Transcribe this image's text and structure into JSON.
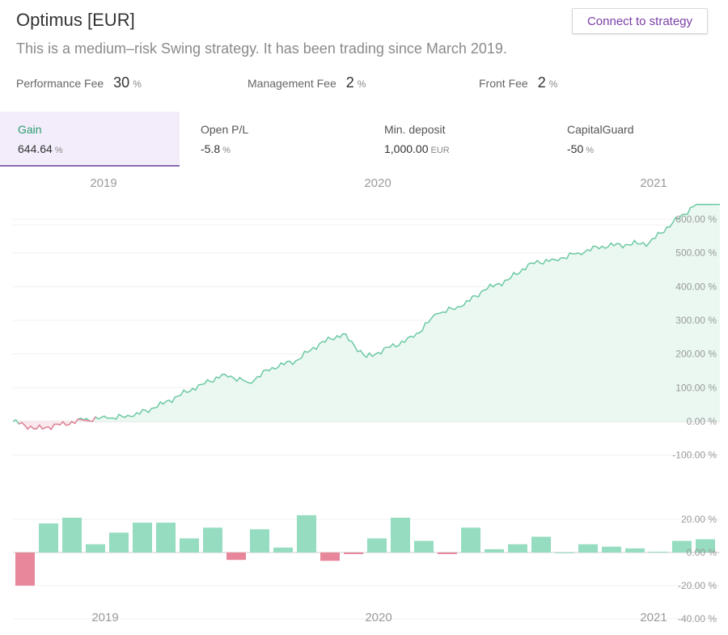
{
  "header": {
    "title": "Optimus [EUR]",
    "subtitle": "This is a medium–risk Swing strategy. It has been trading since March 2019.",
    "connect_label": "Connect to strategy"
  },
  "fees": [
    {
      "label": "Performance Fee",
      "value": "30",
      "unit": "%"
    },
    {
      "label": "Management Fee",
      "value": "2",
      "unit": "%"
    },
    {
      "label": "Front Fee",
      "value": "2",
      "unit": "%"
    }
  ],
  "stats": [
    {
      "label": "Gain",
      "value": "644.64",
      "unit": "%",
      "active": true
    },
    {
      "label": "Open P/L",
      "value": "-5.8",
      "unit": "%"
    },
    {
      "label": "Min. deposit",
      "value": "1,000.00",
      "unit": "EUR"
    },
    {
      "label": "CapitalGuard",
      "value": "-50",
      "unit": "%"
    }
  ],
  "colors": {
    "accent": "#7b3fa6",
    "positive": "#6cc9a2",
    "negative": "#e8829a",
    "bar_positive": "#96dcc0",
    "bar_negative": "#e8879b"
  },
  "chart_data": [
    {
      "type": "area",
      "top_year_labels": [
        "2019",
        "2020",
        "2021"
      ],
      "y_tick_labels": [
        "600.00 %",
        "500.00 %",
        "400.00 %",
        "300.00 %",
        "200.00 %",
        "100.00 %",
        "0.00 %",
        "-100.00 %"
      ],
      "ylim": [
        -100,
        620
      ],
      "grid": true,
      "series": [
        {
          "x": [
            "2018-10",
            "2018-11",
            "2018-12",
            "2019-01",
            "2019-02",
            "2019-03",
            "2019-04",
            "2019-05",
            "2019-06",
            "2019-07",
            "2019-08",
            "2019-09",
            "2019-10",
            "2019-11",
            "2019-12",
            "2020-01",
            "2020-02",
            "2020-03",
            "2020-04",
            "2020-05",
            "2020-06",
            "2020-07",
            "2020-08",
            "2020-09",
            "2020-10",
            "2020-11",
            "2020-12",
            "2021-01",
            "2021-02",
            "2021-03"
          ],
          "y": [
            0,
            -22,
            -10,
            5,
            10,
            15,
            40,
            75,
            110,
            140,
            115,
            160,
            180,
            230,
            260,
            190,
            220,
            250,
            320,
            340,
            390,
            420,
            470,
            480,
            500,
            520,
            525,
            530,
            590,
            644
          ]
        }
      ]
    },
    {
      "type": "bar",
      "x_labels": [
        "2019",
        "2020",
        "2021"
      ],
      "y_tick_labels": [
        "20.00 %",
        "0.00 %",
        "-20.00 %",
        "-40.00 %"
      ],
      "ylim": [
        -45,
        25
      ],
      "grid": true,
      "categories": [
        "2018-10",
        "2018-11",
        "2018-12",
        "2019-01",
        "2019-02",
        "2019-03",
        "2019-04",
        "2019-05",
        "2019-06",
        "2019-07",
        "2019-08",
        "2019-09",
        "2019-10",
        "2019-11",
        "2019-12",
        "2020-01",
        "2020-02",
        "2020-03",
        "2020-04",
        "2020-05",
        "2020-06",
        "2020-07",
        "2020-08",
        "2020-09",
        "2020-10",
        "2020-11",
        "2020-12",
        "2021-01",
        "2021-02",
        "2021-03"
      ],
      "values": [
        -20,
        17.5,
        21,
        5,
        12,
        18,
        18,
        8.5,
        15,
        -4.5,
        14,
        3,
        22.5,
        -5,
        -1,
        8.5,
        21,
        7,
        -1,
        15,
        2,
        5,
        9.5,
        0,
        5,
        3.5,
        2.5,
        0.5,
        7,
        8
      ]
    }
  ]
}
